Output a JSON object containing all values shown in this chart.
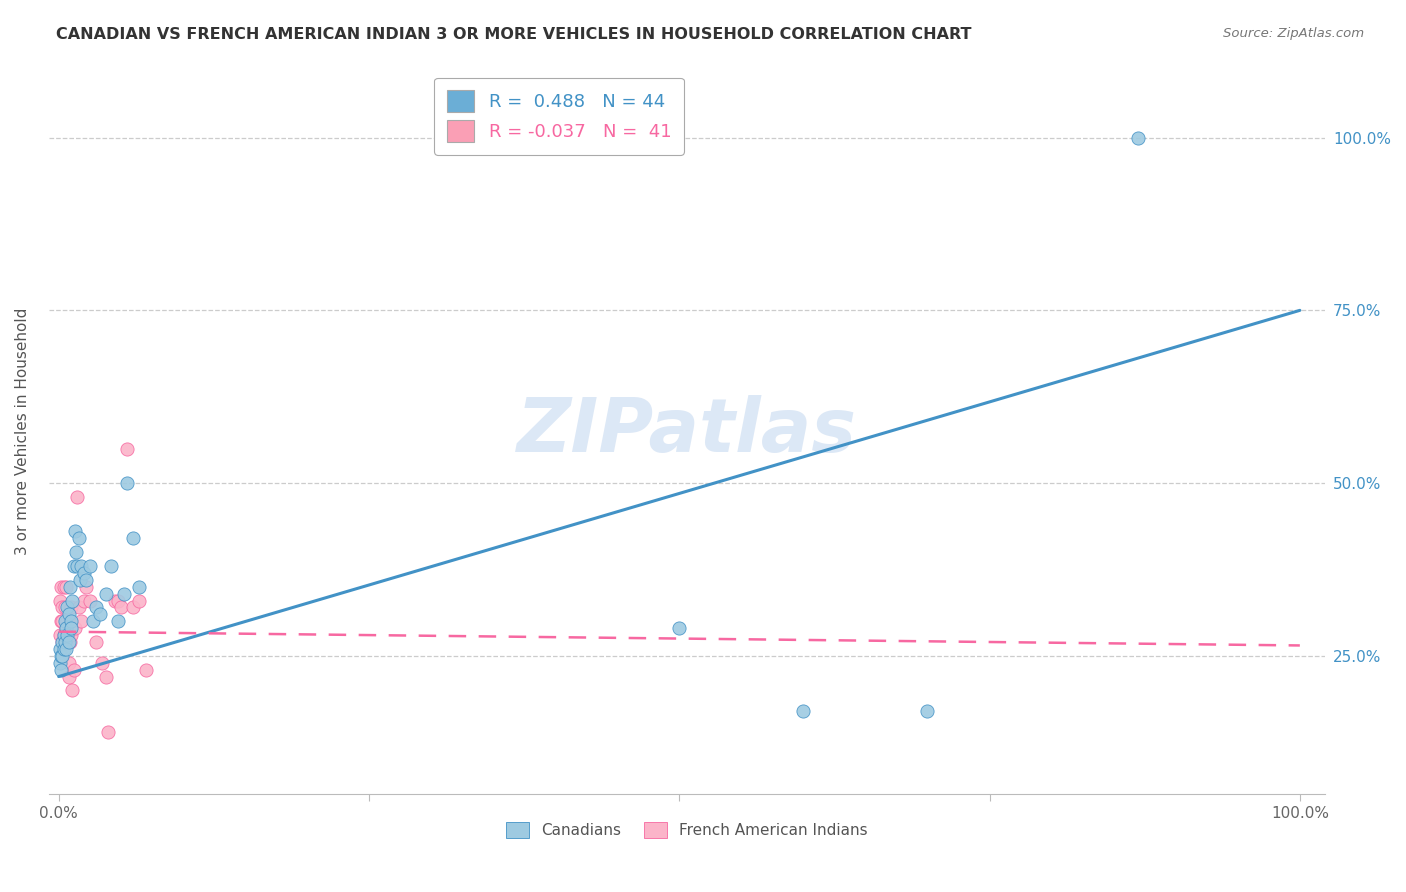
{
  "title": "CANADIAN VS FRENCH AMERICAN INDIAN 3 OR MORE VEHICLES IN HOUSEHOLD CORRELATION CHART",
  "source": "Source: ZipAtlas.com",
  "ylabel": "3 or more Vehicles in Household",
  "ytick_labels": [
    "25.0%",
    "50.0%",
    "75.0%",
    "100.0%"
  ],
  "ytick_values": [
    0.25,
    0.5,
    0.75,
    1.0
  ],
  "legend_entries": [
    {
      "label": "Canadians",
      "color": "#6baed6",
      "R": "0.488",
      "N": "44"
    },
    {
      "label": "French American Indians",
      "color": "#fa9fb5",
      "R": "-0.037",
      "N": "41"
    }
  ],
  "canadian_x": [
    0.001,
    0.001,
    0.002,
    0.002,
    0.003,
    0.003,
    0.004,
    0.004,
    0.005,
    0.005,
    0.006,
    0.006,
    0.007,
    0.007,
    0.008,
    0.008,
    0.009,
    0.01,
    0.01,
    0.011,
    0.012,
    0.013,
    0.014,
    0.015,
    0.016,
    0.017,
    0.018,
    0.02,
    0.022,
    0.025,
    0.028,
    0.03,
    0.033,
    0.038,
    0.042,
    0.048,
    0.053,
    0.06,
    0.065,
    0.5,
    0.6,
    0.7,
    0.87,
    0.055
  ],
  "canadian_y": [
    0.26,
    0.24,
    0.25,
    0.23,
    0.27,
    0.25,
    0.28,
    0.26,
    0.3,
    0.27,
    0.26,
    0.29,
    0.32,
    0.28,
    0.31,
    0.27,
    0.35,
    0.3,
    0.29,
    0.33,
    0.38,
    0.43,
    0.4,
    0.38,
    0.42,
    0.36,
    0.38,
    0.37,
    0.36,
    0.38,
    0.3,
    0.32,
    0.31,
    0.34,
    0.38,
    0.3,
    0.34,
    0.42,
    0.35,
    0.29,
    0.17,
    0.17,
    1.0,
    0.5
  ],
  "french_x": [
    0.001,
    0.001,
    0.002,
    0.002,
    0.003,
    0.003,
    0.003,
    0.004,
    0.004,
    0.005,
    0.005,
    0.006,
    0.006,
    0.007,
    0.007,
    0.008,
    0.008,
    0.009,
    0.009,
    0.01,
    0.01,
    0.011,
    0.012,
    0.013,
    0.015,
    0.016,
    0.018,
    0.02,
    0.022,
    0.025,
    0.03,
    0.035,
    0.038,
    0.04,
    0.045,
    0.048,
    0.05,
    0.055,
    0.06,
    0.065,
    0.07
  ],
  "french_y": [
    0.28,
    0.33,
    0.3,
    0.35,
    0.3,
    0.27,
    0.32,
    0.35,
    0.28,
    0.27,
    0.32,
    0.29,
    0.35,
    0.3,
    0.28,
    0.24,
    0.22,
    0.3,
    0.27,
    0.32,
    0.28,
    0.2,
    0.23,
    0.29,
    0.48,
    0.32,
    0.3,
    0.33,
    0.35,
    0.33,
    0.27,
    0.24,
    0.22,
    0.14,
    0.33,
    0.33,
    0.32,
    0.55,
    0.32,
    0.33,
    0.23
  ],
  "canadian_line_x0": 0.0,
  "canadian_line_y0": 0.22,
  "canadian_line_x1": 1.0,
  "canadian_line_y1": 0.75,
  "french_line_x0": 0.0,
  "french_line_y0": 0.285,
  "french_line_x1": 1.0,
  "french_line_y1": 0.265,
  "canadian_line_color": "#4292c6",
  "french_line_color": "#f768a1",
  "scatter_canadian_color": "#9ecae1",
  "scatter_french_color": "#fbb4c9",
  "watermark": "ZIPatlas",
  "background_color": "#ffffff",
  "grid_color": "#cccccc",
  "xlim": [
    -0.008,
    1.02
  ],
  "ylim": [
    0.05,
    1.1
  ]
}
